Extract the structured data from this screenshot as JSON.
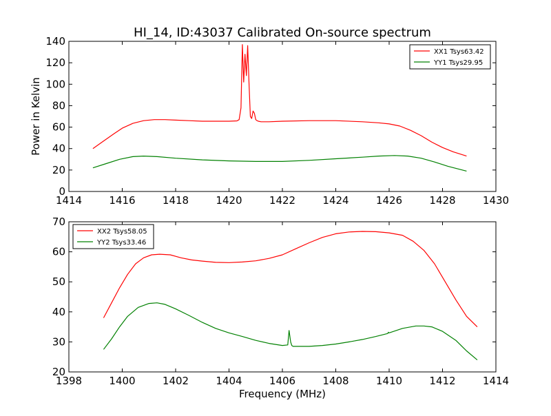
{
  "chart_data": [
    {
      "type": "line",
      "title": "HI_14, ID:43037 Calibrated On-source spectrum",
      "xlabel": "",
      "ylabel": "Power in Kelvin",
      "xlim": [
        1414,
        1430
      ],
      "ylim": [
        0,
        140
      ],
      "xticks": [
        "1414",
        "1416",
        "1418",
        "1420",
        "1422",
        "1424",
        "1426",
        "1428",
        "1430"
      ],
      "yticks": [
        "0",
        "20",
        "40",
        "60",
        "80",
        "100",
        "120",
        "140"
      ],
      "legend_position": "top-right",
      "grid": false,
      "series": [
        {
          "name": "XX1 Tsys63.42",
          "color": "#ff0000",
          "x": [
            1414.9,
            1415.3,
            1415.7,
            1416.0,
            1416.4,
            1416.8,
            1417.2,
            1417.6,
            1418.0,
            1418.5,
            1419.0,
            1419.5,
            1420.0,
            1420.3,
            1420.38,
            1420.45,
            1420.5,
            1420.55,
            1420.6,
            1420.65,
            1420.7,
            1420.75,
            1420.8,
            1420.85,
            1420.9,
            1420.95,
            1421.0,
            1421.05,
            1421.1,
            1421.2,
            1421.5,
            1422.0,
            1423.0,
            1424.0,
            1425.0,
            1425.6,
            1426.0,
            1426.4,
            1426.8,
            1427.2,
            1427.6,
            1428.0,
            1428.4,
            1428.9
          ],
          "y": [
            40,
            47,
            54,
            59,
            63.5,
            66,
            67,
            67,
            66.5,
            66,
            65.5,
            65.5,
            65.5,
            65.8,
            67,
            78,
            137,
            102,
            128,
            108,
            136,
            100,
            70,
            68,
            75,
            73,
            67,
            66,
            65.5,
            65,
            65,
            65.5,
            66,
            66,
            65,
            64,
            63,
            61,
            57,
            52,
            46,
            41,
            37,
            33
          ]
        },
        {
          "name": "YY1 Tsys29.95",
          "color": "#008000",
          "x": [
            1414.9,
            1415.4,
            1415.9,
            1416.4,
            1416.8,
            1417.3,
            1418.0,
            1419.0,
            1420.0,
            1421.0,
            1422.0,
            1423.0,
            1424.0,
            1425.0,
            1425.6,
            1426.2,
            1426.7,
            1427.2,
            1427.7,
            1428.2,
            1428.9
          ],
          "y": [
            22,
            26,
            30,
            32.5,
            33,
            32.5,
            31,
            29.5,
            28.5,
            28,
            28,
            29,
            30.5,
            32,
            33,
            33.5,
            33,
            31,
            27.5,
            23.5,
            19
          ]
        }
      ]
    },
    {
      "type": "line",
      "title": "",
      "xlabel": "Frequency (MHz)",
      "ylabel": "",
      "xlim": [
        1398,
        1414
      ],
      "ylim": [
        20,
        70
      ],
      "xticks": [
        "1398",
        "1400",
        "1402",
        "1404",
        "1406",
        "1408",
        "1410",
        "1412",
        "1414"
      ],
      "yticks": [
        "20",
        "30",
        "40",
        "50",
        "60",
        "70"
      ],
      "legend_position": "top-left",
      "grid": false,
      "series": [
        {
          "name": "XX2 Tsys58.05",
          "color": "#ff0000",
          "x": [
            1399.3,
            1399.6,
            1399.9,
            1400.2,
            1400.5,
            1400.8,
            1401.1,
            1401.4,
            1401.8,
            1402.2,
            1402.6,
            1403.0,
            1403.5,
            1404.0,
            1404.5,
            1405.0,
            1405.5,
            1406.0,
            1406.5,
            1407.0,
            1407.5,
            1408.0,
            1408.5,
            1409.0,
            1409.5,
            1410.0,
            1410.5,
            1410.9,
            1411.3,
            1411.7,
            1412.1,
            1412.5,
            1412.9,
            1413.3
          ],
          "y": [
            38,
            43,
            48,
            52.5,
            56,
            58,
            59,
            59.2,
            59,
            58,
            57.3,
            56.9,
            56.5,
            56.4,
            56.6,
            57,
            57.8,
            59,
            61,
            63,
            64.8,
            66,
            66.6,
            66.8,
            66.7,
            66.3,
            65.5,
            63.5,
            60.5,
            56,
            50,
            44,
            38.5,
            35
          ]
        },
        {
          "name": "YY2 Tsys33.46",
          "color": "#008000",
          "x": [
            1399.3,
            1399.6,
            1399.9,
            1400.2,
            1400.6,
            1401.0,
            1401.3,
            1401.6,
            1402.0,
            1402.5,
            1403.0,
            1403.5,
            1404.0,
            1404.5,
            1405.0,
            1405.5,
            1406.0,
            1406.2,
            1406.25,
            1406.28,
            1406.31,
            1406.35,
            1406.4,
            1407.0,
            1407.5,
            1408.0,
            1408.5,
            1409.0,
            1409.5,
            1409.95,
            1409.97,
            1410.0,
            1410.5,
            1411.0,
            1411.3,
            1411.6,
            1412.0,
            1412.5,
            1412.9,
            1413.3
          ],
          "y": [
            27.5,
            31,
            35,
            38.5,
            41.5,
            42.8,
            43,
            42.5,
            41,
            38.8,
            36.5,
            34.5,
            33,
            31.8,
            30.5,
            29.5,
            28.8,
            29,
            33.8,
            32,
            30,
            28.8,
            28.5,
            28.5,
            28.8,
            29.3,
            30,
            30.8,
            31.8,
            32.8,
            33.2,
            33,
            34.5,
            35.3,
            35.3,
            35,
            33.5,
            30.5,
            27,
            24
          ]
        }
      ]
    }
  ]
}
